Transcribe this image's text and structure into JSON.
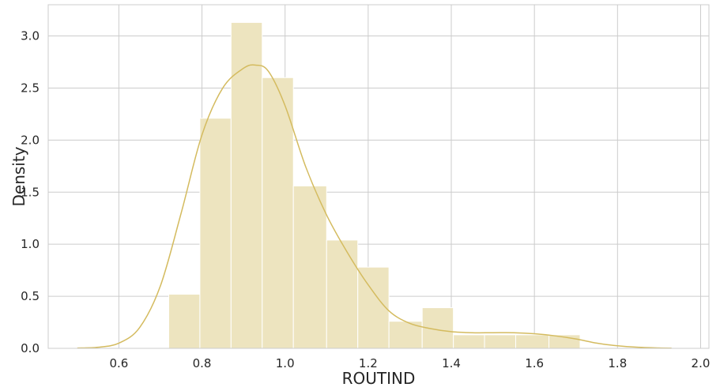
{
  "chart_data": {
    "type": "histogram",
    "xlabel": "ROUTIND",
    "ylabel": "Density",
    "xlim": [
      0.43,
      2.02
    ],
    "ylim": [
      0,
      3.3
    ],
    "x_ticks": [
      "0.6",
      "0.8",
      "1.0",
      "1.2",
      "1.4",
      "1.6",
      "1.8",
      "2.0"
    ],
    "y_ticks": [
      "0.0",
      "0.5",
      "1.0",
      "1.5",
      "2.0",
      "2.5",
      "3.0"
    ],
    "grid": true,
    "legend": "none",
    "colors": {
      "bar_fill": "#ede4bf",
      "bar_edge": "#ffffff",
      "kde_line": "#d4bb5f",
      "grid": "#cccccc",
      "frame": "#cccccc"
    },
    "bins": [
      {
        "x0": 0.72,
        "x1": 0.795,
        "density": 0.52
      },
      {
        "x0": 0.795,
        "x1": 0.87,
        "density": 2.21
      },
      {
        "x0": 0.87,
        "x1": 0.945,
        "density": 3.13
      },
      {
        "x0": 0.945,
        "x1": 1.02,
        "density": 2.6
      },
      {
        "x0": 1.02,
        "x1": 1.1,
        "density": 1.56
      },
      {
        "x0": 1.1,
        "x1": 1.175,
        "density": 1.04
      },
      {
        "x0": 1.175,
        "x1": 1.25,
        "density": 0.78
      },
      {
        "x0": 1.25,
        "x1": 1.33,
        "density": 0.26
      },
      {
        "x0": 1.33,
        "x1": 1.405,
        "density": 0.39
      },
      {
        "x0": 1.405,
        "x1": 1.48,
        "density": 0.13
      },
      {
        "x0": 1.48,
        "x1": 1.555,
        "density": 0.13
      },
      {
        "x0": 1.555,
        "x1": 1.635,
        "density": 0.13
      },
      {
        "x0": 1.635,
        "x1": 1.71,
        "density": 0.13
      }
    ],
    "kde": {
      "x": [
        0.5,
        0.55,
        0.6,
        0.65,
        0.7,
        0.75,
        0.8,
        0.85,
        0.9,
        0.93,
        0.96,
        1.0,
        1.05,
        1.1,
        1.15,
        1.2,
        1.25,
        1.3,
        1.35,
        1.4,
        1.45,
        1.5,
        1.55,
        1.6,
        1.65,
        1.7,
        1.75,
        1.8,
        1.85,
        1.9,
        1.93
      ],
      "y": [
        0.003,
        0.01,
        0.05,
        0.2,
        0.6,
        1.3,
        2.05,
        2.5,
        2.69,
        2.72,
        2.66,
        2.33,
        1.74,
        1.28,
        0.92,
        0.61,
        0.36,
        0.24,
        0.19,
        0.16,
        0.15,
        0.15,
        0.15,
        0.14,
        0.12,
        0.09,
        0.05,
        0.025,
        0.01,
        0.004,
        0.002
      ]
    }
  }
}
